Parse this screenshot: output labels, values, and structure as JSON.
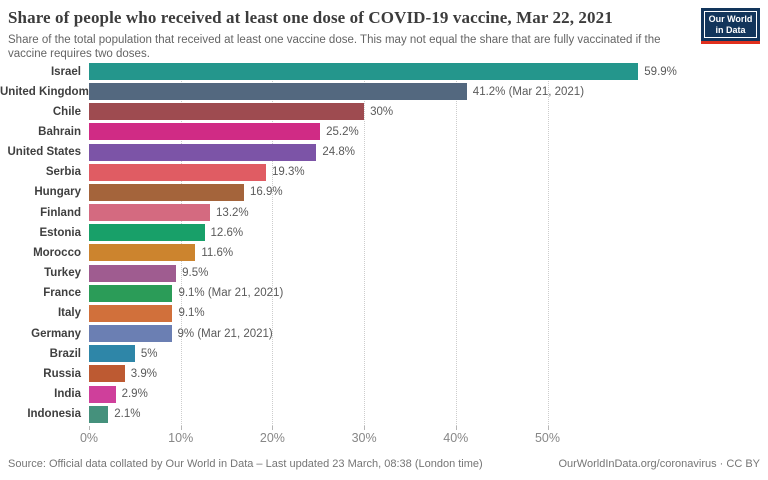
{
  "header": {
    "title": "Share of people who received at least one dose of COVID-19 vaccine, Mar 22, 2021",
    "subtitle": "Share of the total population that received at least one vaccine dose. This may not equal the share that are fully vaccinated if the vaccine requires two doses.",
    "logo": {
      "line1": "Our World",
      "line2": "in Data",
      "bg_color": "#12355b",
      "accent_color": "#e0301e"
    }
  },
  "chart_data": {
    "type": "bar",
    "orientation": "horizontal",
    "title": "Share of people who received at least one dose of COVID-19 vaccine, Mar 22, 2021",
    "xlabel": "",
    "ylabel": "",
    "xlim": [
      0,
      74
    ],
    "grid": true,
    "x_ticks": [
      {
        "value": 0,
        "label": "0%"
      },
      {
        "value": 10,
        "label": "10%"
      },
      {
        "value": 20,
        "label": "20%"
      },
      {
        "value": 30,
        "label": "30%"
      },
      {
        "value": 40,
        "label": "40%"
      },
      {
        "value": 50,
        "label": "50%"
      }
    ],
    "categories": [
      "Israel",
      "United Kingdom",
      "Chile",
      "Bahrain",
      "United States",
      "Serbia",
      "Hungary",
      "Finland",
      "Estonia",
      "Morocco",
      "Turkey",
      "France",
      "Italy",
      "Germany",
      "Brazil",
      "Russia",
      "India",
      "Indonesia"
    ],
    "values": [
      59.9,
      41.2,
      30,
      25.2,
      24.8,
      19.3,
      16.9,
      13.2,
      12.6,
      11.6,
      9.5,
      9.1,
      9.1,
      9,
      5,
      3.9,
      2.9,
      2.1
    ],
    "value_labels": [
      "59.9%",
      "41.2% (Mar 21, 2021)",
      "30%",
      "25.2%",
      "24.8%",
      "19.3%",
      "16.9%",
      "13.2%",
      "12.6%",
      "11.6%",
      "9.5%",
      "9.1% (Mar 21, 2021)",
      "9.1%",
      "9% (Mar 21, 2021)",
      "5%",
      "3.9%",
      "2.9%",
      "2.1%"
    ],
    "bar_colors": [
      "#24968c",
      "#53687f",
      "#9e4b50",
      "#d02b85",
      "#7c54a7",
      "#e05c63",
      "#a4643b",
      "#d46a80",
      "#18a069",
      "#cc842e",
      "#9f5c90",
      "#2b9c58",
      "#d1703b",
      "#6b7fb3",
      "#2e86a8",
      "#bd5a32",
      "#cf3f9b",
      "#45917c"
    ]
  },
  "footer": {
    "source": "Source: Official data collated by Our World in Data – Last updated 23 March, 08:38 (London time)",
    "link": "OurWorldInData.org/coronavirus · CC BY"
  }
}
